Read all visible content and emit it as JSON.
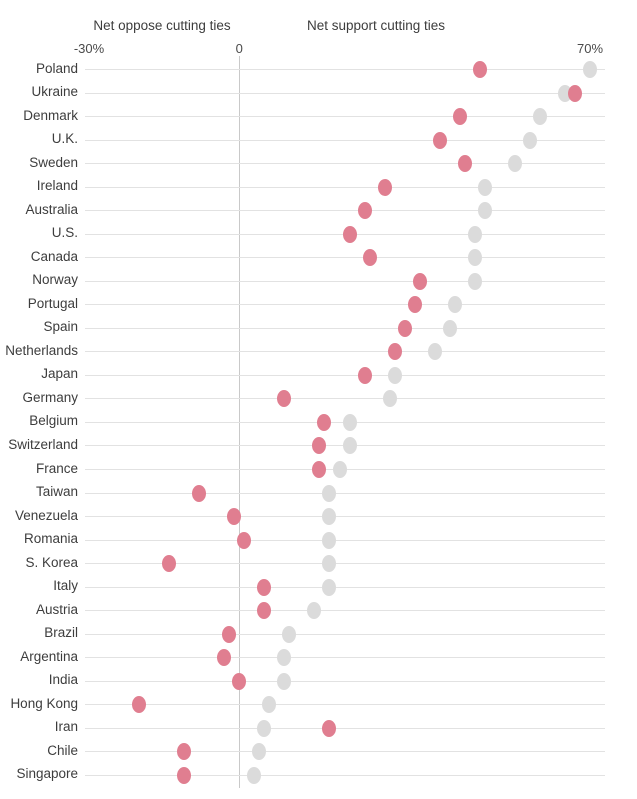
{
  "chart_data": {
    "type": "scatter",
    "subtype": "dumbbell-dot-plot",
    "title": "",
    "headers": {
      "left": "Net oppose cutting ties",
      "right": "Net support cutting ties"
    },
    "axis": {
      "range": [
        -30,
        70
      ],
      "ticks": [
        {
          "label": "-30%",
          "value": -30
        },
        {
          "label": "0",
          "value": 0
        },
        {
          "label": "70%",
          "value": 70
        }
      ],
      "grid": "horizontal-row-lines",
      "zero_line": true
    },
    "series": [
      {
        "name": "pink",
        "color": "#e07e90"
      },
      {
        "name": "gray",
        "color": "#dbdbdb"
      }
    ],
    "rows": [
      {
        "country": "Poland",
        "pink": 48,
        "gray": 70
      },
      {
        "country": "Ukraine",
        "pink": 67,
        "gray": 65
      },
      {
        "country": "Denmark",
        "pink": 44,
        "gray": 60
      },
      {
        "country": "U.K.",
        "pink": 40,
        "gray": 58
      },
      {
        "country": "Sweden",
        "pink": 45,
        "gray": 55
      },
      {
        "country": "Ireland",
        "pink": 29,
        "gray": 49
      },
      {
        "country": "Australia",
        "pink": 25,
        "gray": 49
      },
      {
        "country": "U.S.",
        "pink": 22,
        "gray": 47
      },
      {
        "country": "Canada",
        "pink": 26,
        "gray": 47
      },
      {
        "country": "Norway",
        "pink": 36,
        "gray": 47
      },
      {
        "country": "Portugal",
        "pink": 35,
        "gray": 43
      },
      {
        "country": "Spain",
        "pink": 33,
        "gray": 42
      },
      {
        "country": "Netherlands",
        "pink": 31,
        "gray": 39
      },
      {
        "country": "Japan",
        "pink": 25,
        "gray": 31
      },
      {
        "country": "Germany",
        "pink": 9,
        "gray": 30
      },
      {
        "country": "Belgium",
        "pink": 17,
        "gray": 22
      },
      {
        "country": "Switzerland",
        "pink": 16,
        "gray": 22
      },
      {
        "country": "France",
        "pink": 16,
        "gray": 20
      },
      {
        "country": "Taiwan",
        "pink": -8,
        "gray": 18
      },
      {
        "country": "Venezuela",
        "pink": -1,
        "gray": 18
      },
      {
        "country": "Romania",
        "pink": 1,
        "gray": 18
      },
      {
        "country": "S. Korea",
        "pink": -14,
        "gray": 18
      },
      {
        "country": "Italy",
        "pink": 5,
        "gray": 18
      },
      {
        "country": "Austria",
        "pink": 5,
        "gray": 15
      },
      {
        "country": "Brazil",
        "pink": -2,
        "gray": 10
      },
      {
        "country": "Argentina",
        "pink": -3,
        "gray": 9
      },
      {
        "country": "India",
        "pink": 0,
        "gray": 9
      },
      {
        "country": "Hong Kong",
        "pink": -20,
        "gray": 6
      },
      {
        "country": "Iran",
        "pink": 18,
        "gray": 5
      },
      {
        "country": "Chile",
        "pink": -11,
        "gray": 4
      },
      {
        "country": "Singapore",
        "pink": -11,
        "gray": 3
      }
    ]
  },
  "colors": {
    "pink_dot": "#e07e90",
    "gray_dot": "#dbdbdb",
    "row_line": "#e2e2e2",
    "zero_line": "#c9c9c9",
    "text": "#3d3d3d",
    "background": "#ffffff"
  }
}
